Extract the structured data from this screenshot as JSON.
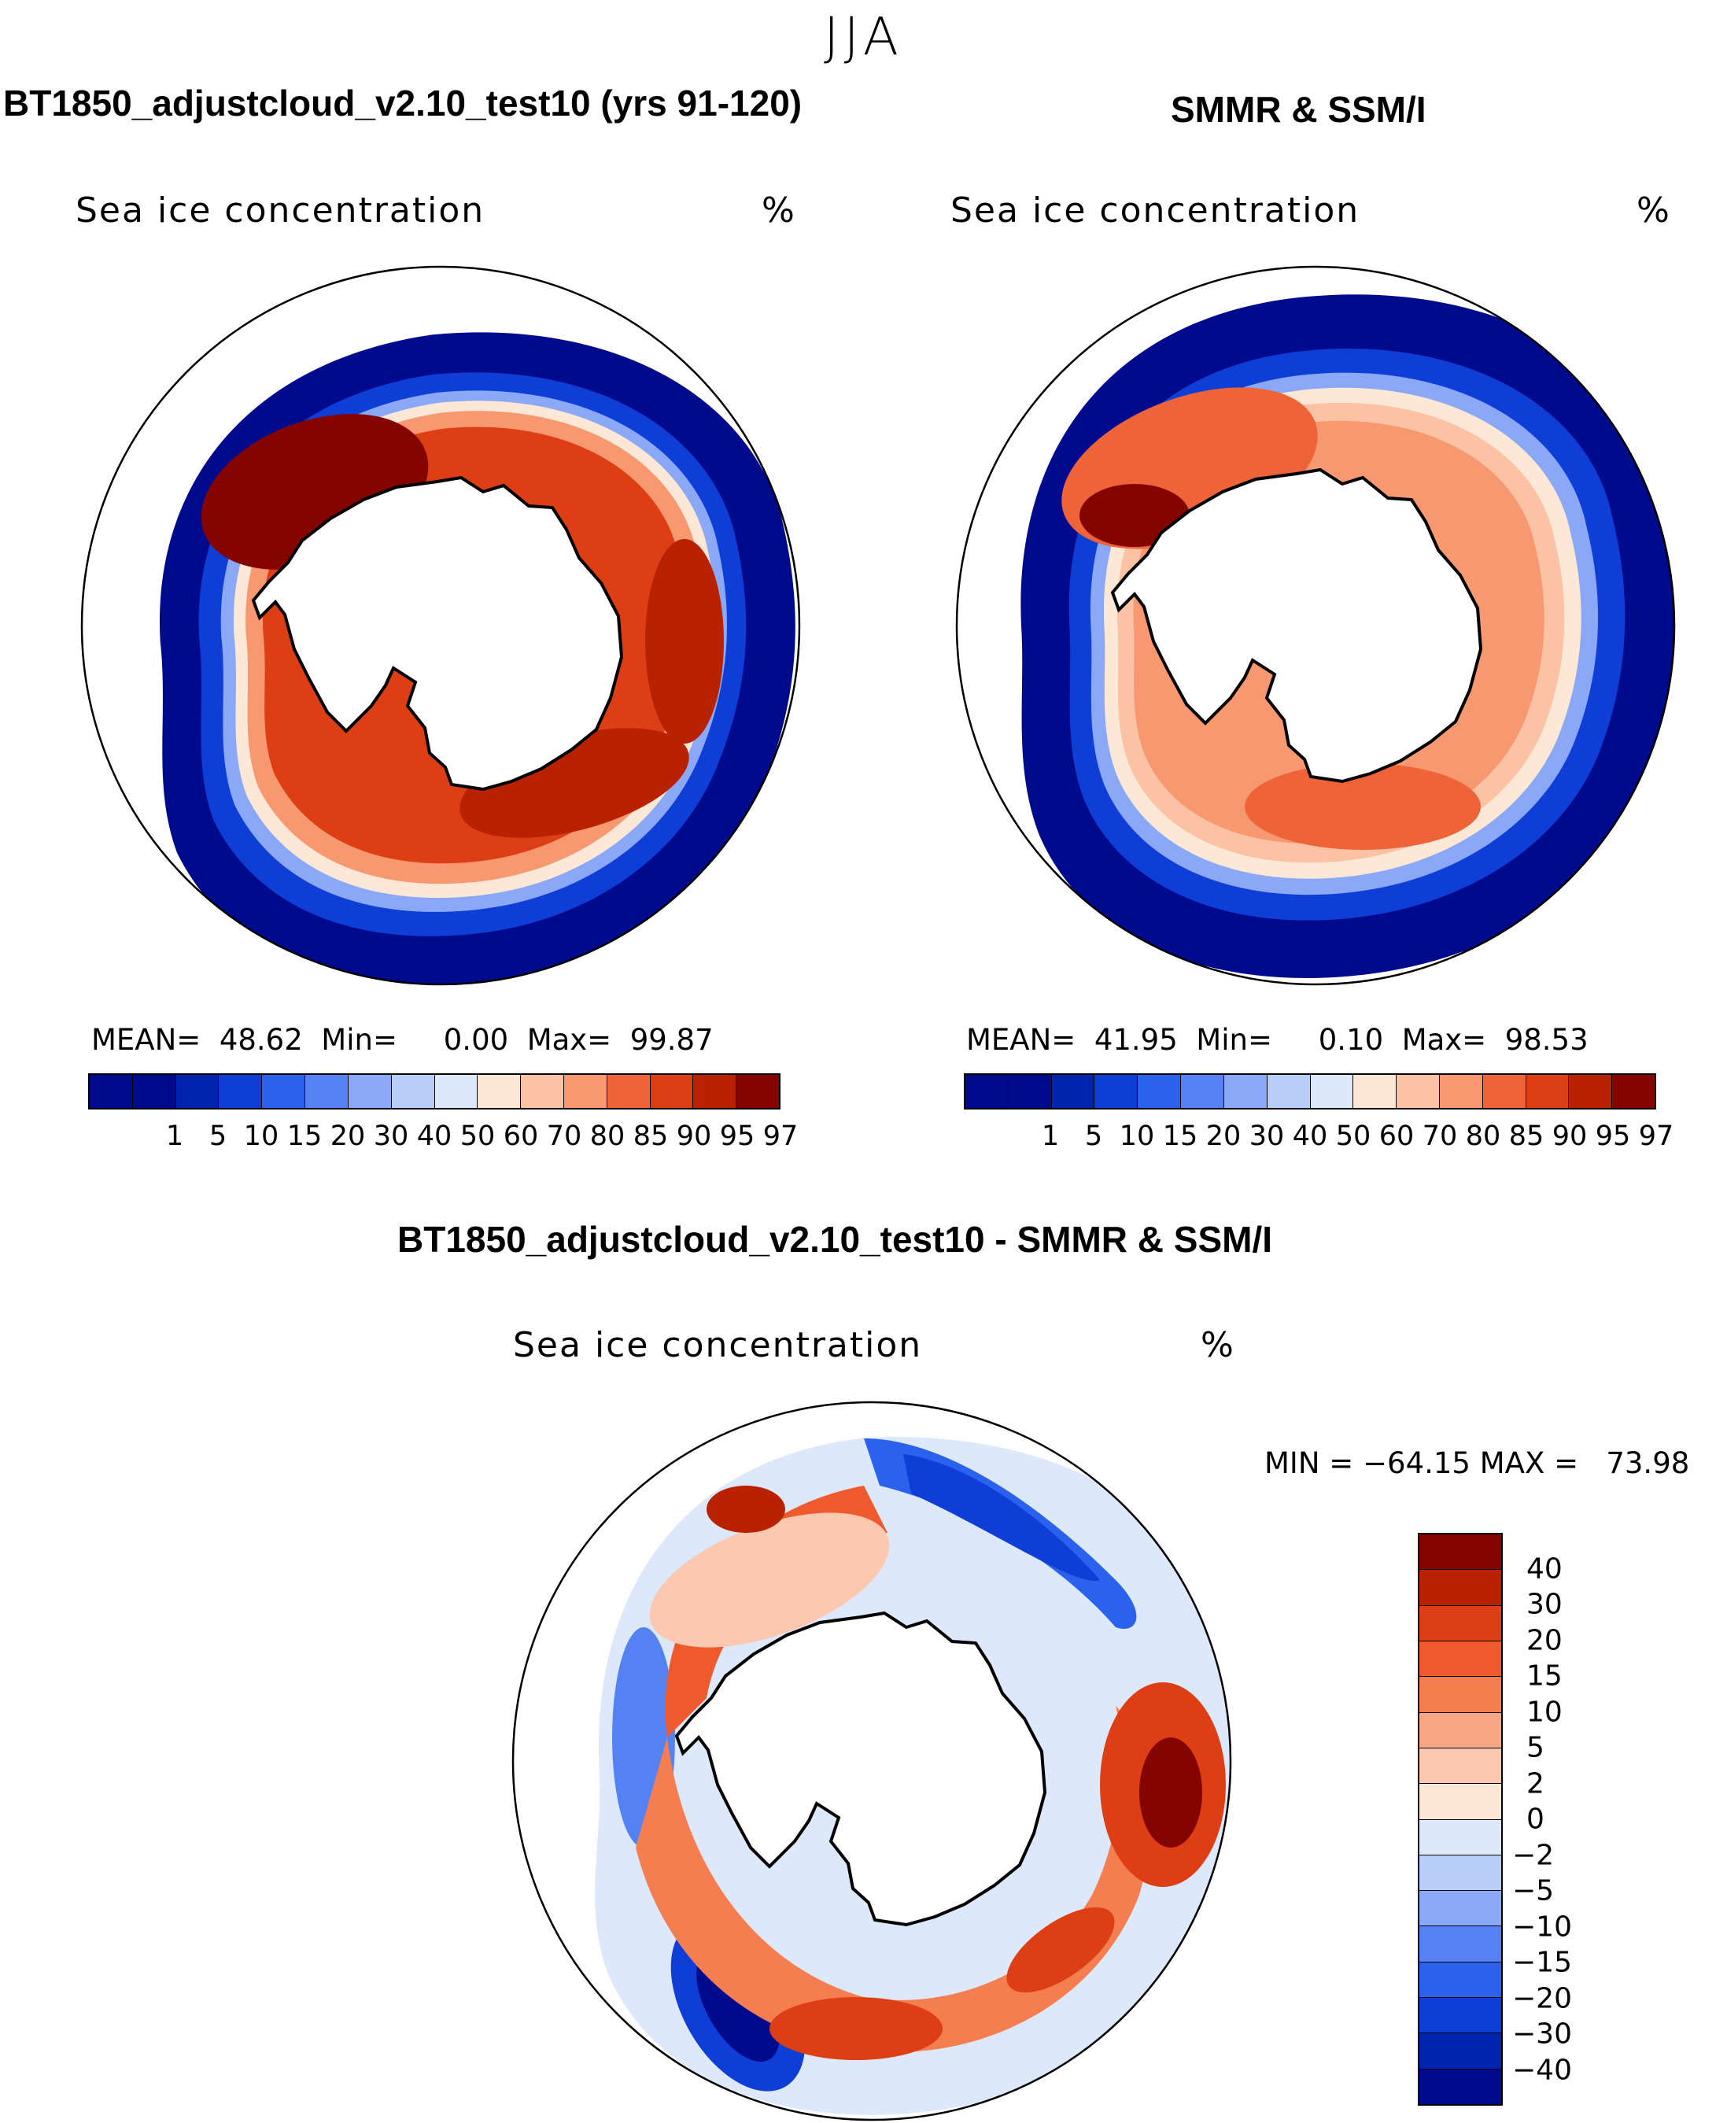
{
  "figure": {
    "season": "JJA"
  },
  "panels": [
    {
      "title": "BT1850_adjustcloud_v2.10_test10 (yrs 91-120)",
      "subtitle": "Sea ice concentration",
      "units": "%",
      "mean_label": "MEAN=",
      "mean": "48.62",
      "min_label": "Min=",
      "min": "0.00",
      "max_label": "Max=",
      "max": "99.87"
    },
    {
      "title": "SMMR & SSM/I",
      "subtitle": "Sea ice concentration",
      "units": "%",
      "mean_label": "MEAN=",
      "mean": "41.95",
      "min_label": "Min=",
      "min": "0.10",
      "max_label": "Max=",
      "max": "98.53"
    },
    {
      "title": "BT1850_adjustcloud_v2.10_test10 - SMMR & SSM/I",
      "subtitle": "Sea ice concentration",
      "units": "%",
      "minmax_text": "MIN = −64.15 MAX =   73.98"
    }
  ],
  "colorbar_concentration": {
    "levels": [
      "1",
      "5",
      "10",
      "15",
      "20",
      "30",
      "40",
      "50",
      "60",
      "70",
      "80",
      "85",
      "90",
      "95",
      "97"
    ],
    "colors": [
      "#000a8c",
      "#0024b0",
      "#0f3ed6",
      "#2a62ee",
      "#5582f2",
      "#8aa8f5",
      "#b8cdf8",
      "#dde9fb",
      "#fde8d8",
      "#fcc2a4",
      "#f79870",
      "#ee6438",
      "#dd3e14",
      "#b82200",
      "#840400"
    ]
  },
  "colorbar_difference": {
    "levels": [
      "40",
      "30",
      "20",
      "15",
      "10",
      "5",
      "2",
      "0",
      "−2",
      "−5",
      "−10",
      "−15",
      "−20",
      "−30",
      "−40"
    ],
    "colors": [
      "#840400",
      "#b82200",
      "#dd3e14",
      "#ee5a2c",
      "#f57e50",
      "#f9a684",
      "#fcc8b0",
      "#fde8d8",
      "#dde9fb",
      "#b8cdf8",
      "#8aa8f5",
      "#5582f2",
      "#2a62ee",
      "#0f3ed6",
      "#0024b0",
      "#000a8c"
    ]
  },
  "map_colors": {
    "dark_blue": "#000a8c",
    "blue": "#0f3ed6",
    "light_blue": "#8aa8f5",
    "pale_blue": "#dde9fb",
    "pale_orange": "#fde8d8",
    "orange": "#f79870",
    "red": "#dd3e14",
    "dark_red": "#b82200",
    "darkest_red": "#840400"
  }
}
